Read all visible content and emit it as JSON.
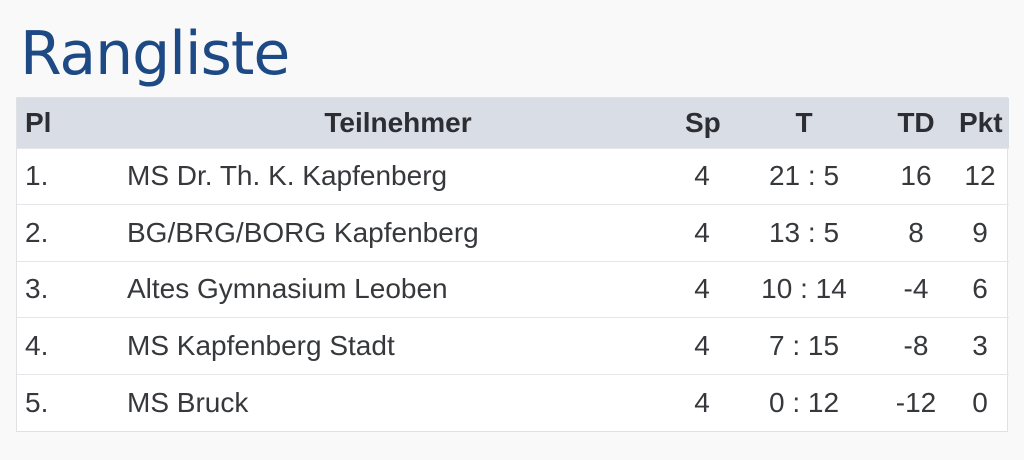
{
  "page": {
    "title": "Rangliste"
  },
  "table": {
    "headers": {
      "pos": "Pl",
      "name": "Teilnehmer",
      "sp": "Sp",
      "t": "T",
      "td": "TD",
      "pkt": "Pkt"
    },
    "rows": [
      {
        "pos": "1.",
        "name": "MS Dr. Th. K. Kapfenberg",
        "sp": "4",
        "t": "21 : 5",
        "td": "16",
        "pkt": "12"
      },
      {
        "pos": "2.",
        "name": "BG/BRG/BORG Kapfenberg",
        "sp": "4",
        "t": "13 : 5",
        "td": "8",
        "pkt": "9"
      },
      {
        "pos": "3.",
        "name": "Altes Gymnasium Leoben",
        "sp": "4",
        "t": "10 : 14",
        "td": "-4",
        "pkt": "6"
      },
      {
        "pos": "4.",
        "name": "MS Kapfenberg Stadt",
        "sp": "4",
        "t": "7 : 15",
        "td": "-8",
        "pkt": "3"
      },
      {
        "pos": "5.",
        "name": "MS Bruck",
        "sp": "4",
        "t": "0 : 12",
        "td": "-12",
        "pkt": "0"
      }
    ]
  },
  "colors": {
    "title": "#1d4a84",
    "header_background": "#d8dde6",
    "row_background": "#ffffff",
    "page_background": "#f9f9fa"
  }
}
